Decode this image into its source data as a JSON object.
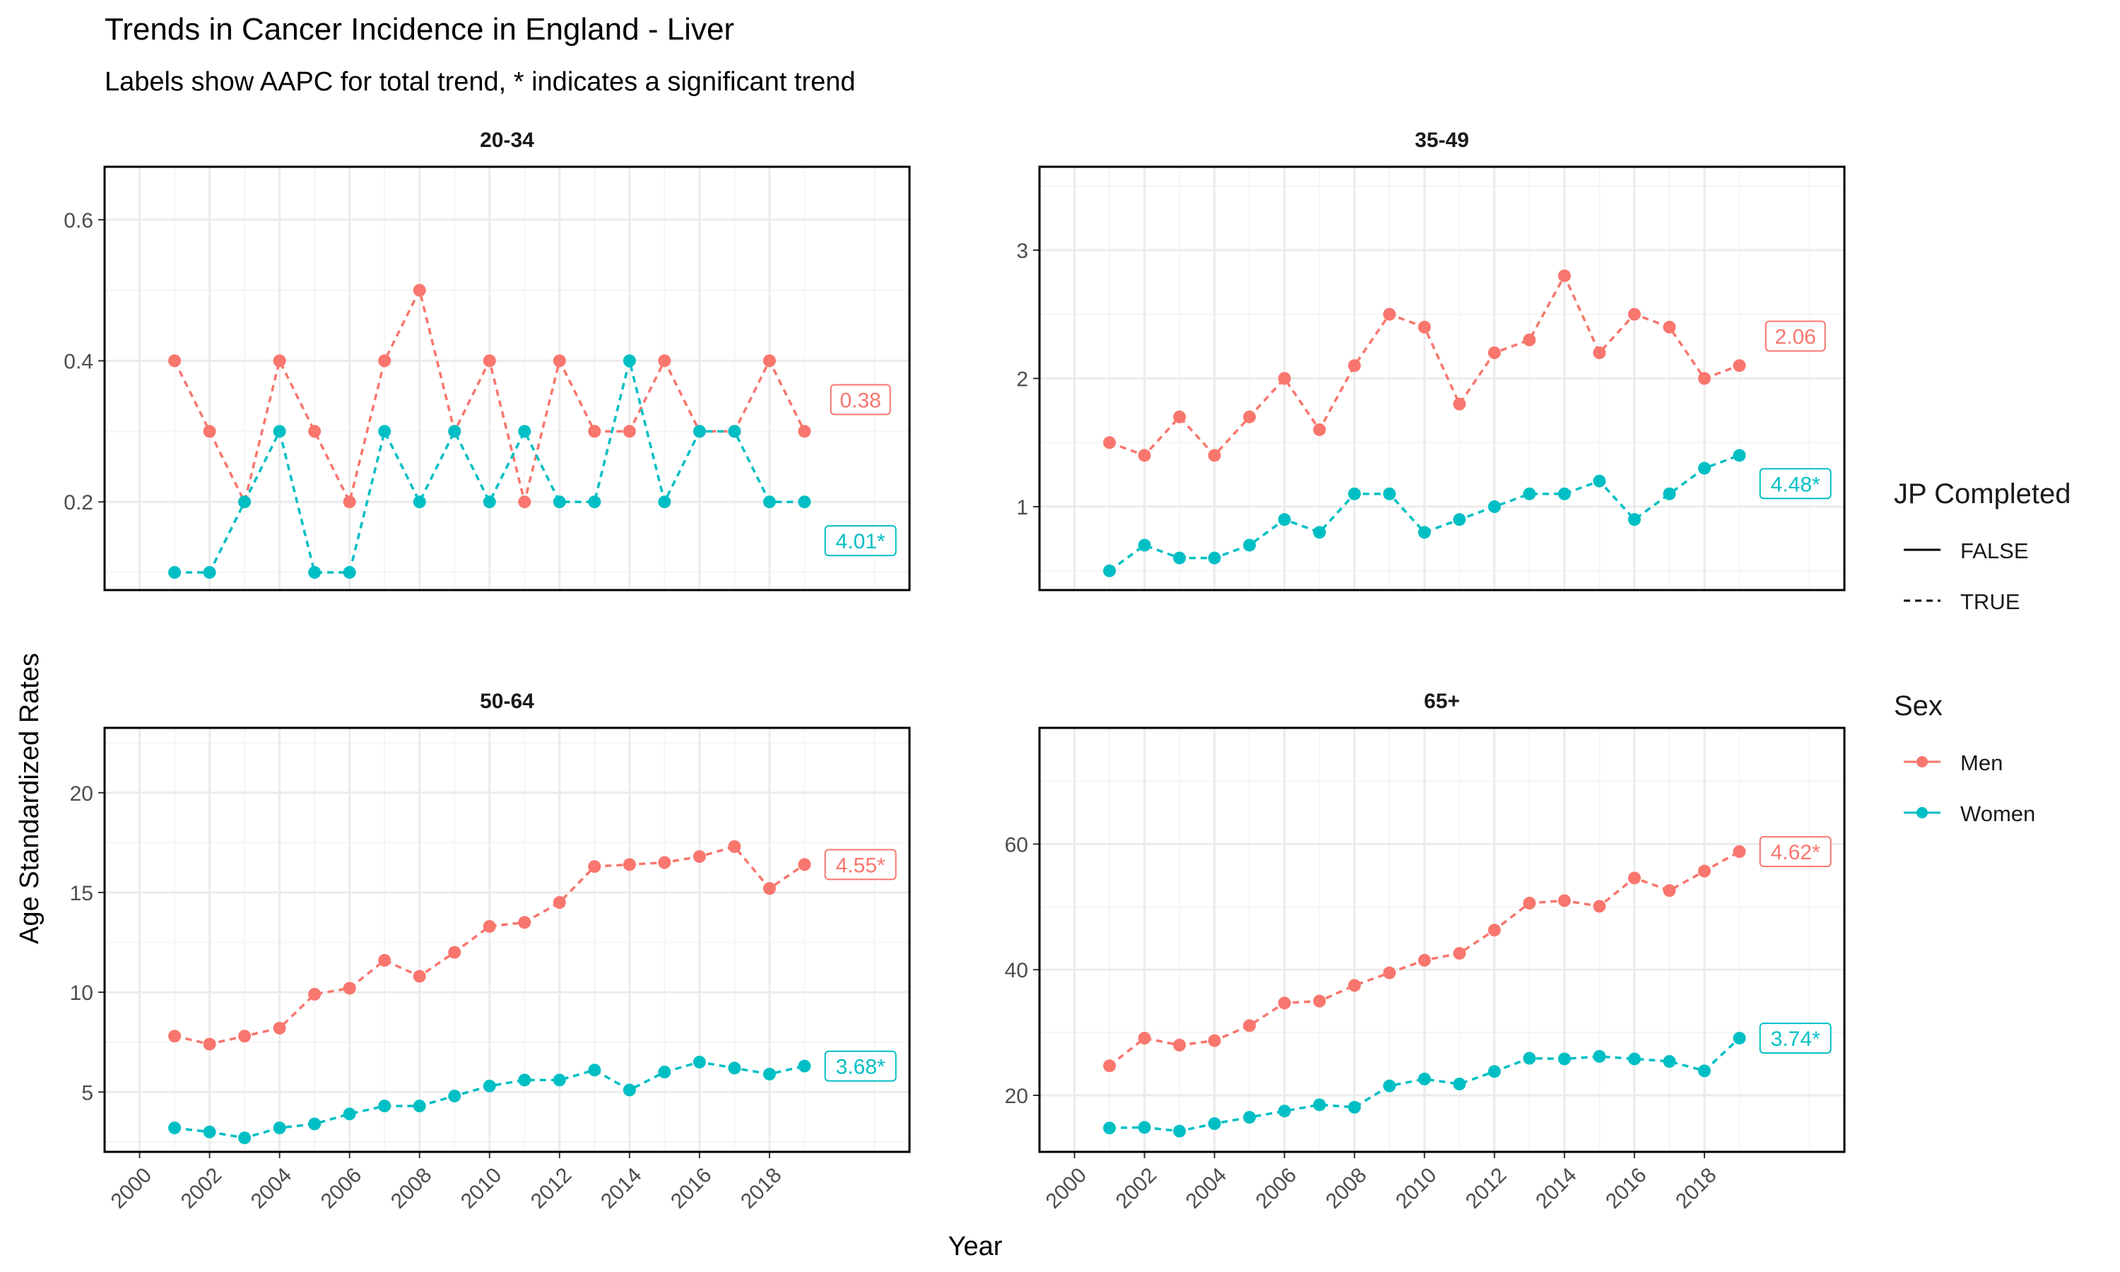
{
  "title": "Trends in Cancer Incidence in England - Liver",
  "subtitle": "Labels show AAPC for total trend, * indicates a significant trend",
  "colors": {
    "men": "#F8766D",
    "women": "#00BFC4",
    "grid_major": "#ebebeb",
    "grid_minor": "#f5f5f5",
    "panel_border": "#000000",
    "axis_text": "#4d4d4d"
  },
  "legend": {
    "jp_title": "JP Completed",
    "jp_items": [
      {
        "label": "FALSE",
        "linetype": "solid"
      },
      {
        "label": "TRUE",
        "linetype": "dashed"
      }
    ],
    "sex_title": "Sex",
    "sex_items": [
      {
        "label": "Men",
        "color": "#F8766D"
      },
      {
        "label": "Women",
        "color": "#00BFC4"
      }
    ]
  },
  "chart_data": {
    "type": "line",
    "xlabel": "Year",
    "ylabel": "Age Standardized Rates",
    "x_ticks": [
      "2000",
      "2002",
      "2004",
      "2006",
      "2008",
      "2010",
      "2012",
      "2014",
      "2016",
      "2018"
    ],
    "xlim": [
      1999,
      2022
    ],
    "facets": [
      {
        "name": "20-34",
        "ylim": [
          0.075,
          0.675
        ],
        "y_ticks": [
          0.2,
          0.4,
          0.6
        ],
        "y_tick_labels": [
          "0.2",
          "0.4",
          "0.6"
        ],
        "series": [
          {
            "name": "Men",
            "jp_completed": "TRUE",
            "x": [
              2001,
              2002,
              2003,
              2004,
              2005,
              2006,
              2007,
              2008,
              2009,
              2010,
              2011,
              2012,
              2013,
              2014,
              2015,
              2016,
              2017,
              2018,
              2019
            ],
            "values": [
              0.4,
              0.3,
              0.2,
              0.4,
              0.3,
              0.2,
              0.4,
              0.5,
              0.3,
              0.4,
              0.2,
              0.4,
              0.3,
              0.3,
              0.4,
              0.3,
              0.3,
              0.4,
              0.3
            ],
            "aapc_label": "0.38",
            "label_y": 0.345
          },
          {
            "name": "Women",
            "jp_completed": "TRUE",
            "x": [
              2001,
              2002,
              2003,
              2004,
              2005,
              2006,
              2007,
              2008,
              2009,
              2010,
              2011,
              2012,
              2013,
              2014,
              2015,
              2016,
              2017,
              2018,
              2019
            ],
            "values": [
              0.1,
              0.1,
              0.2,
              0.3,
              0.1,
              0.1,
              0.3,
              0.2,
              0.3,
              0.2,
              0.3,
              0.2,
              0.2,
              0.4,
              0.2,
              0.3,
              0.3,
              0.2,
              0.2
            ],
            "aapc_label": "4.01*",
            "label_y": 0.145
          }
        ]
      },
      {
        "name": "35-49",
        "ylim": [
          0.35,
          3.65
        ],
        "y_ticks": [
          1,
          2,
          3
        ],
        "y_tick_labels": [
          "1",
          "2",
          "3"
        ],
        "series": [
          {
            "name": "Men",
            "jp_completed": "TRUE",
            "x": [
              2001,
              2002,
              2003,
              2004,
              2005,
              2006,
              2007,
              2008,
              2009,
              2010,
              2011,
              2012,
              2013,
              2014,
              2015,
              2016,
              2017,
              2018,
              2019
            ],
            "values": [
              1.5,
              1.4,
              1.7,
              1.4,
              1.7,
              2.0,
              1.6,
              2.1,
              2.5,
              2.4,
              1.8,
              2.2,
              2.3,
              2.8,
              2.2,
              2.5,
              2.4,
              2.0,
              2.1
            ],
            "aapc_label": "2.06",
            "label_y": 2.33
          },
          {
            "name": "Women",
            "jp_completed": "TRUE",
            "x": [
              2001,
              2002,
              2003,
              2004,
              2005,
              2006,
              2007,
              2008,
              2009,
              2010,
              2011,
              2012,
              2013,
              2014,
              2015,
              2016,
              2017,
              2018,
              2019
            ],
            "values": [
              0.5,
              0.7,
              0.6,
              0.6,
              0.7,
              0.9,
              0.8,
              1.1,
              1.1,
              0.8,
              0.9,
              1.0,
              1.1,
              1.1,
              1.2,
              0.9,
              1.1,
              1.3,
              1.4
            ],
            "aapc_label": "4.48*",
            "label_y": 1.18
          }
        ]
      },
      {
        "name": "50-64",
        "ylim": [
          2.0,
          23.25
        ],
        "y_ticks": [
          5,
          10,
          15,
          20
        ],
        "y_tick_labels": [
          "5",
          "10",
          "15",
          "20"
        ],
        "series": [
          {
            "name": "Men",
            "jp_completed": "TRUE",
            "x": [
              2001,
              2002,
              2003,
              2004,
              2005,
              2006,
              2007,
              2008,
              2009,
              2010,
              2011,
              2012,
              2013,
              2014,
              2015,
              2016,
              2017,
              2018,
              2019
            ],
            "values": [
              7.8,
              7.4,
              7.8,
              8.2,
              9.9,
              10.2,
              11.6,
              10.8,
              12.0,
              13.3,
              13.5,
              14.5,
              16.3,
              16.4,
              16.5,
              16.8,
              17.3,
              15.2,
              16.4
            ],
            "aapc_label": "4.55*",
            "label_y": 16.4
          },
          {
            "name": "Women",
            "jp_completed": "TRUE",
            "x": [
              2001,
              2002,
              2003,
              2004,
              2005,
              2006,
              2007,
              2008,
              2009,
              2010,
              2011,
              2012,
              2013,
              2014,
              2015,
              2016,
              2017,
              2018,
              2019
            ],
            "values": [
              3.2,
              3.0,
              2.7,
              3.2,
              3.4,
              3.9,
              4.3,
              4.3,
              4.8,
              5.3,
              5.6,
              5.6,
              6.1,
              5.1,
              6.0,
              6.5,
              6.2,
              5.9,
              6.3
            ],
            "aapc_label": "3.68*",
            "label_y": 6.3
          }
        ]
      },
      {
        "name": "65+",
        "ylim": [
          11.0,
          78.5
        ],
        "y_ticks": [
          20,
          40,
          60
        ],
        "y_tick_labels": [
          "20",
          "40",
          "60"
        ],
        "series": [
          {
            "name": "Men",
            "jp_completed": "TRUE",
            "x": [
              2001,
              2002,
              2003,
              2004,
              2005,
              2006,
              2007,
              2008,
              2009,
              2010,
              2011,
              2012,
              2013,
              2014,
              2015,
              2016,
              2017,
              2018,
              2019
            ],
            "values": [
              24.7,
              29.1,
              28.0,
              28.7,
              31.1,
              34.7,
              35.0,
              37.5,
              39.5,
              41.5,
              42.6,
              46.3,
              50.6,
              51.0,
              50.1,
              54.6,
              52.6,
              55.7,
              58.8
            ],
            "aapc_label": "4.62*",
            "label_y": 58.8
          },
          {
            "name": "Women",
            "jp_completed": "TRUE",
            "x": [
              2001,
              2002,
              2003,
              2004,
              2005,
              2006,
              2007,
              2008,
              2009,
              2010,
              2011,
              2012,
              2013,
              2014,
              2015,
              2016,
              2017,
              2018,
              2019
            ],
            "values": [
              14.8,
              14.9,
              14.3,
              15.5,
              16.5,
              17.5,
              18.5,
              18.1,
              21.5,
              22.6,
              21.8,
              23.8,
              25.9,
              25.8,
              26.2,
              25.8,
              25.4,
              23.9,
              29.1
            ],
            "aapc_label": "3.74*",
            "label_y": 29.1
          }
        ]
      }
    ]
  }
}
